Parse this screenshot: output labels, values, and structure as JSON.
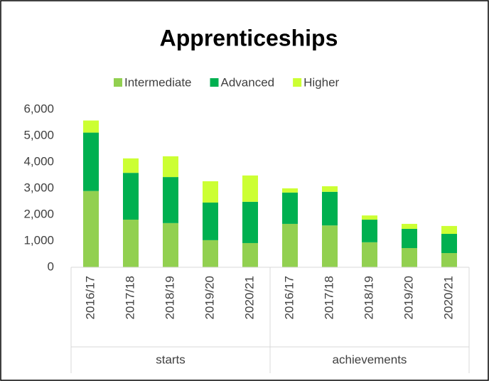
{
  "chart_data": {
    "type": "stacked_bar",
    "title": "Apprenticeships",
    "categories": [
      "2016/17",
      "2017/18",
      "2018/19",
      "2019/20",
      "2020/21",
      "2016/17",
      "2017/18",
      "2018/19",
      "2019/20",
      "2020/21"
    ],
    "groups": [
      "starts",
      "achievements"
    ],
    "series": [
      {
        "name": "Intermediate",
        "color": "#92d050",
        "values": [
          2900,
          1810,
          1680,
          1030,
          920,
          1650,
          1590,
          950,
          730,
          540
        ]
      },
      {
        "name": "Advanced",
        "color": "#00b050",
        "values": [
          2220,
          1780,
          1750,
          1430,
          1570,
          1190,
          1280,
          860,
          730,
          730
        ]
      },
      {
        "name": "Higher",
        "color": "#ccff33",
        "values": [
          460,
          550,
          790,
          810,
          1000,
          160,
          210,
          160,
          190,
          300
        ]
      }
    ],
    "ylim": [
      0,
      6000
    ],
    "yticks": [
      0,
      {
        "value": 1000,
        "label": "1,000"
      },
      {
        "value": 2000,
        "label": "2,000"
      },
      {
        "value": 3000,
        "label": "3,000"
      },
      {
        "value": 4000,
        "label": "4,000"
      },
      {
        "value": 5000,
        "label": "5,000"
      },
      {
        "value": 6000,
        "label": "6,000"
      }
    ],
    "grid": false,
    "legend": "top"
  }
}
